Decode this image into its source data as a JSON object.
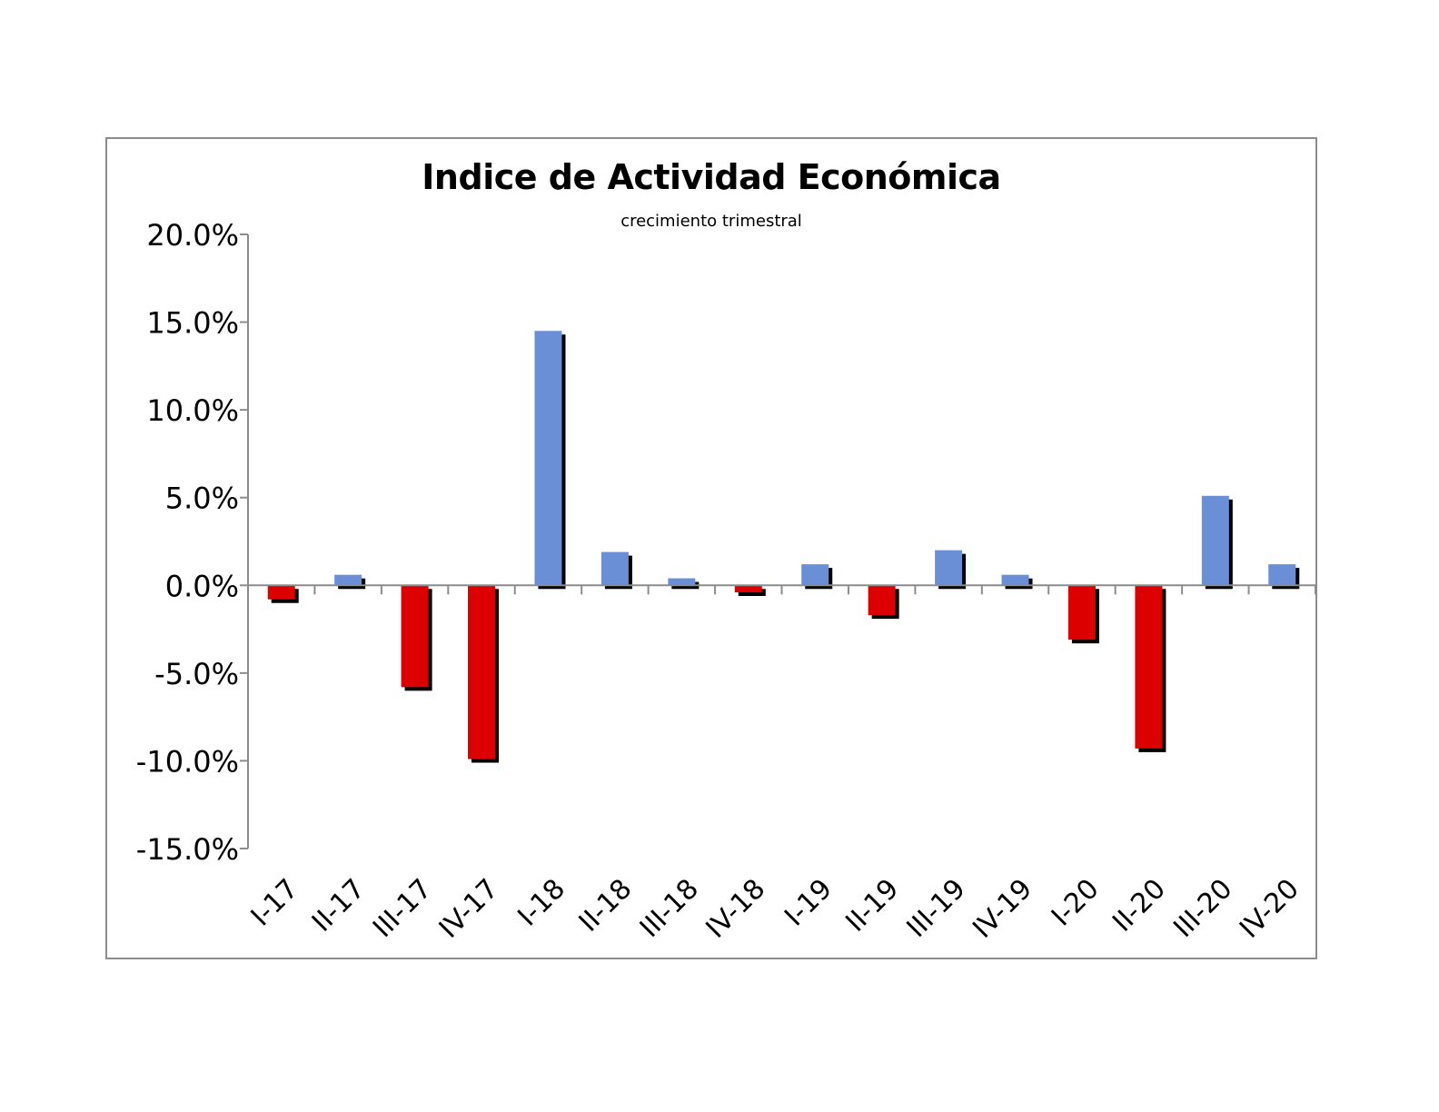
{
  "chart_data": {
    "type": "bar",
    "title": "Indice de Actividad Económica",
    "subtitle": "crecimiento trimestral",
    "xlabel": "",
    "ylabel": "",
    "ylim": [
      -15.0,
      20.0
    ],
    "yticks": [
      20.0,
      15.0,
      10.0,
      5.0,
      0.0,
      -5.0,
      -10.0,
      -15.0
    ],
    "ytick_labels": [
      "20.0%",
      "15.0%",
      "10.0%",
      "5.0%",
      "0.0%",
      "-5.0%",
      "-10.0%",
      "-15.0%"
    ],
    "categories": [
      "I-17",
      "II-17",
      "III-17",
      "IV-17",
      "I-18",
      "II-18",
      "III-18",
      "IV-18",
      "I-19",
      "II-19",
      "III-19",
      "IV-19",
      "I-20",
      "II-20",
      "III-20",
      "IV-20"
    ],
    "values": [
      -0.8,
      0.6,
      -5.8,
      -9.9,
      14.5,
      1.9,
      0.4,
      -0.4,
      1.2,
      -1.7,
      2.0,
      0.6,
      -3.1,
      -9.3,
      5.1,
      1.2
    ],
    "grid": false,
    "legend": "none",
    "colors": {
      "positive": "#6b8fd6",
      "negative": "#dd0000",
      "shadow": "#000000"
    }
  }
}
